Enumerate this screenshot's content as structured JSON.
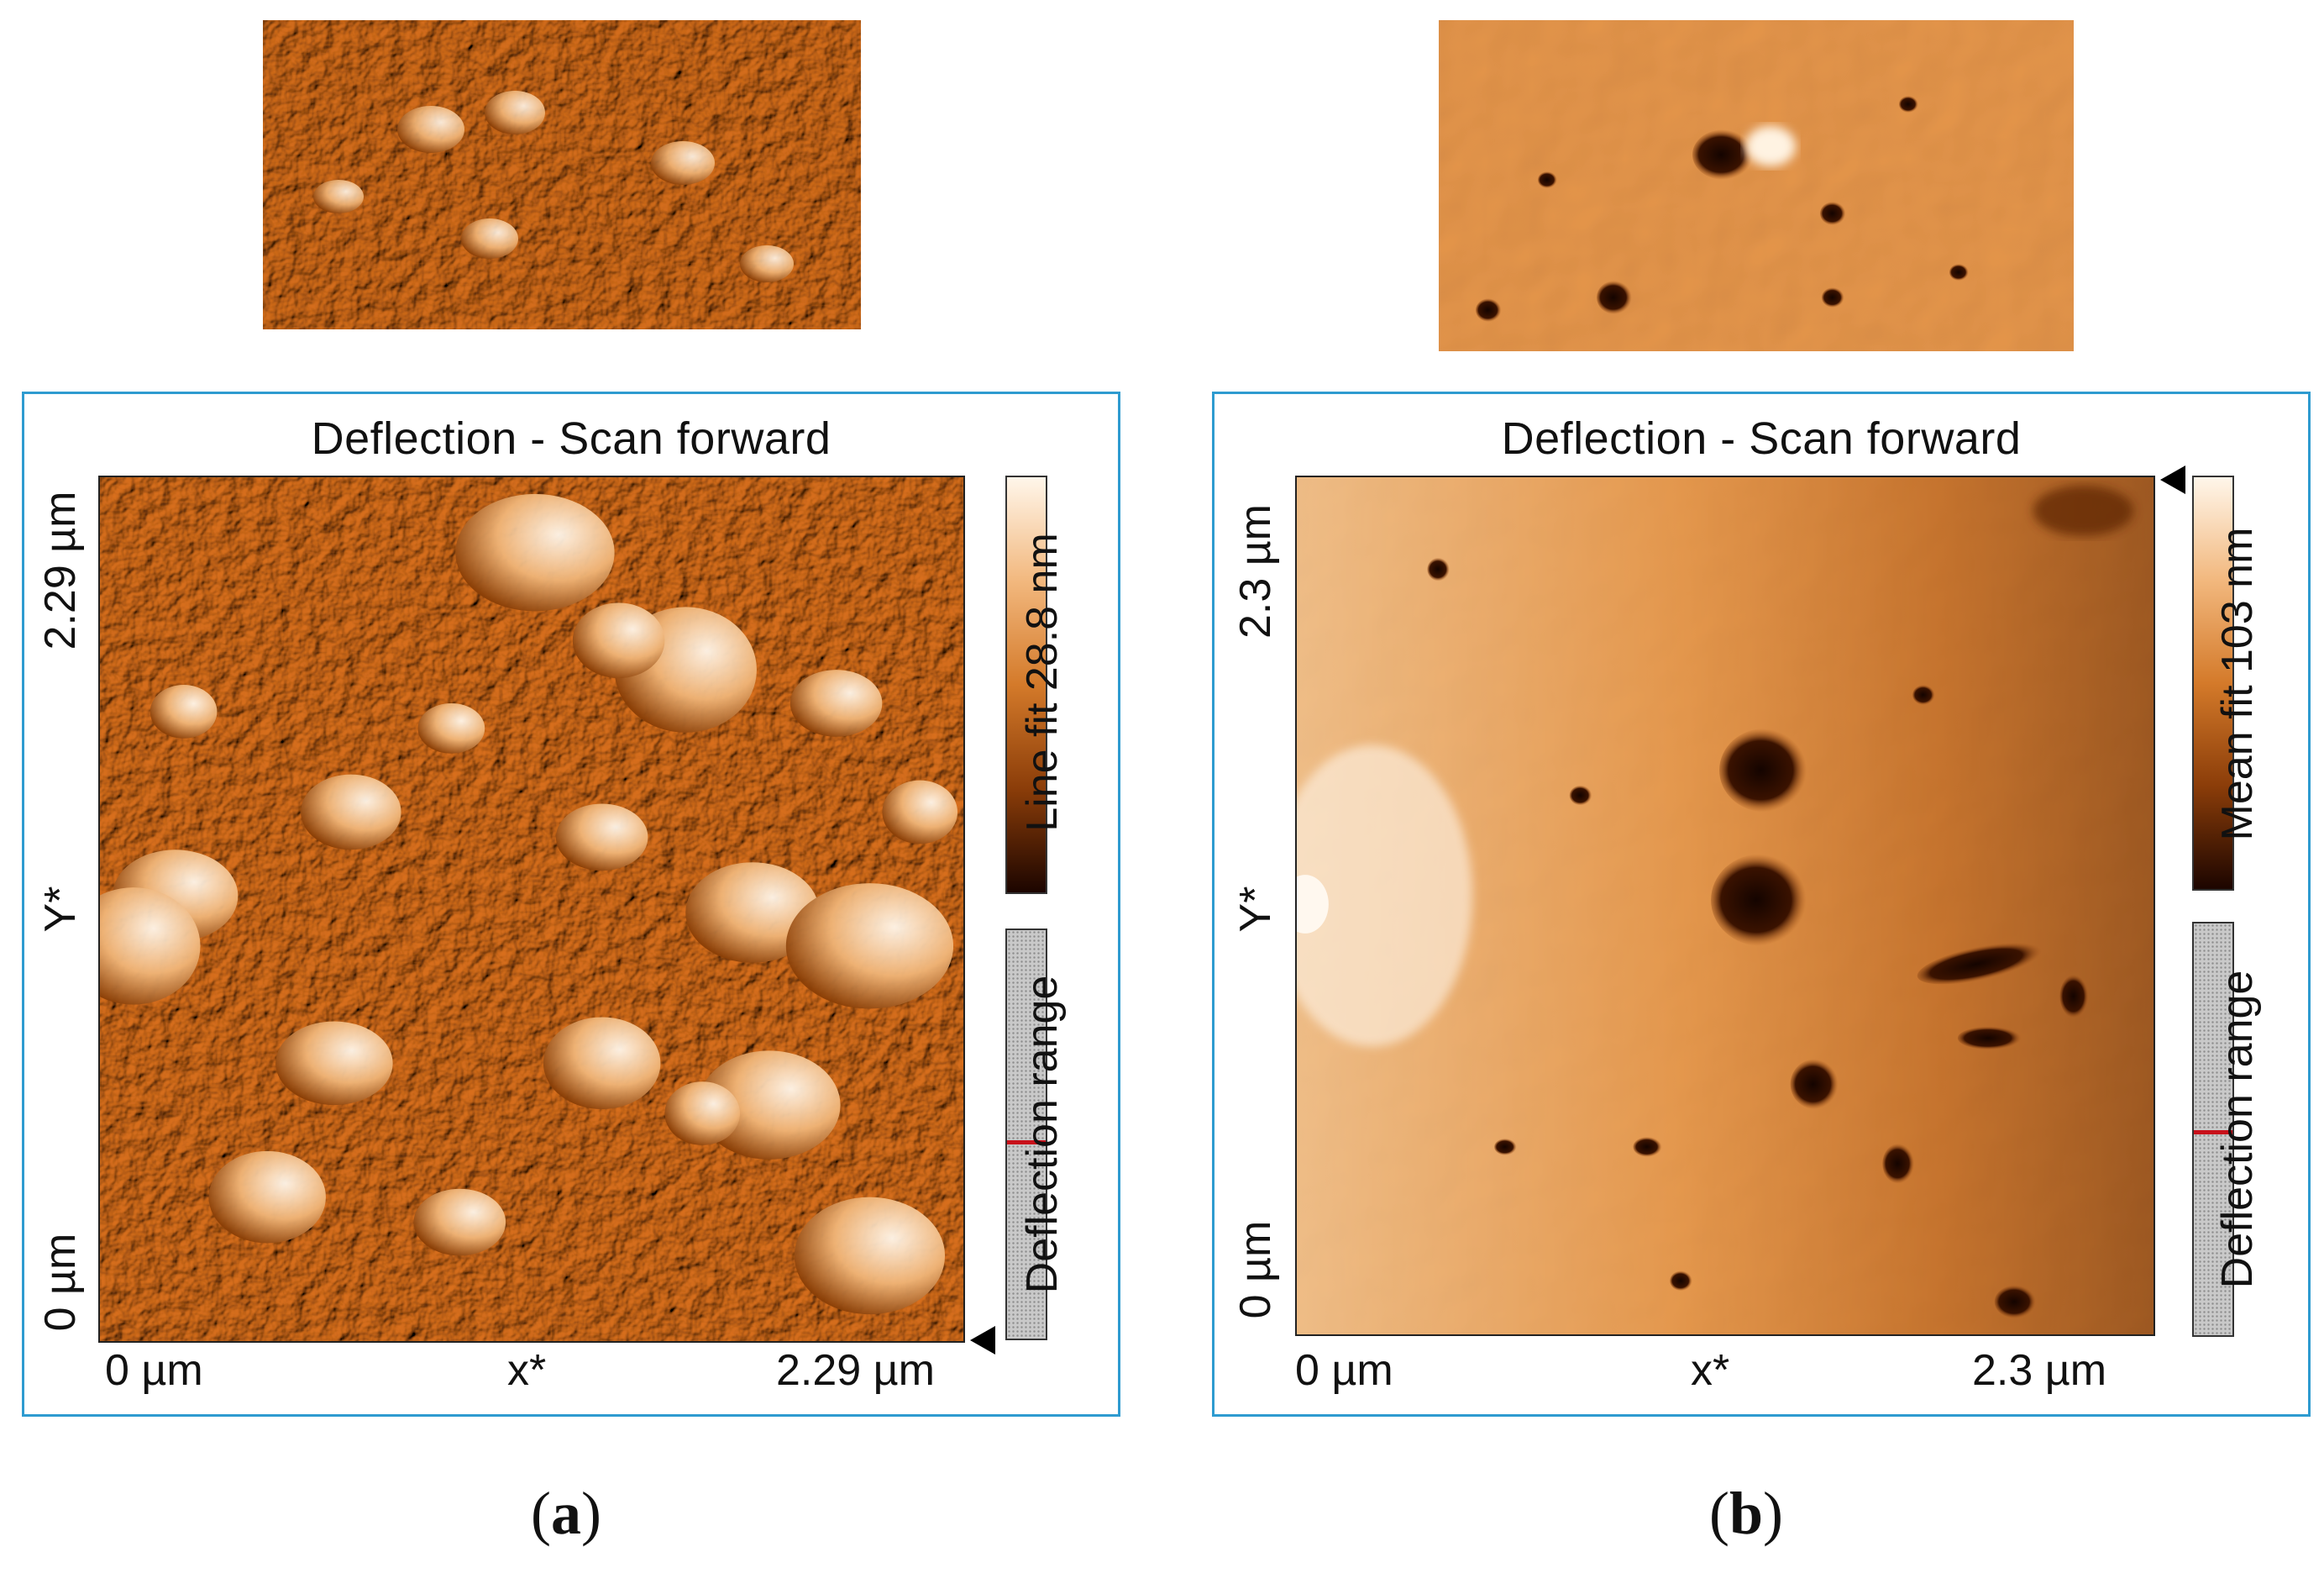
{
  "panel_a": {
    "title": "Deflection - Scan forward",
    "colorbar_label": "Line fit 28.8 nm",
    "range_label": "Deflection range",
    "y_top": "2.29 µm",
    "y_mid": "Y*",
    "y_bottom": "0 µm",
    "x_left": "0 µm",
    "x_mid": "x*",
    "x_right": "2.29 µm",
    "caption_letter": "a"
  },
  "panel_b": {
    "title": "Deflection - Scan forward",
    "colorbar_label": "Mean fit 103 nm",
    "range_label": "Deflection range",
    "y_top": "2.3 µm",
    "y_mid": "Y*",
    "y_bottom": "0 µm",
    "x_left": "0 µm",
    "x_mid": "x*",
    "x_right": "2.3 µm",
    "caption_letter": "b"
  },
  "colors": {
    "frame_border": "#2e9bd0",
    "afm_base": "#c8691b",
    "afm_dark": "#2a0c00",
    "afm_light": "#fff4e6",
    "range_marker": "#c8101a"
  }
}
